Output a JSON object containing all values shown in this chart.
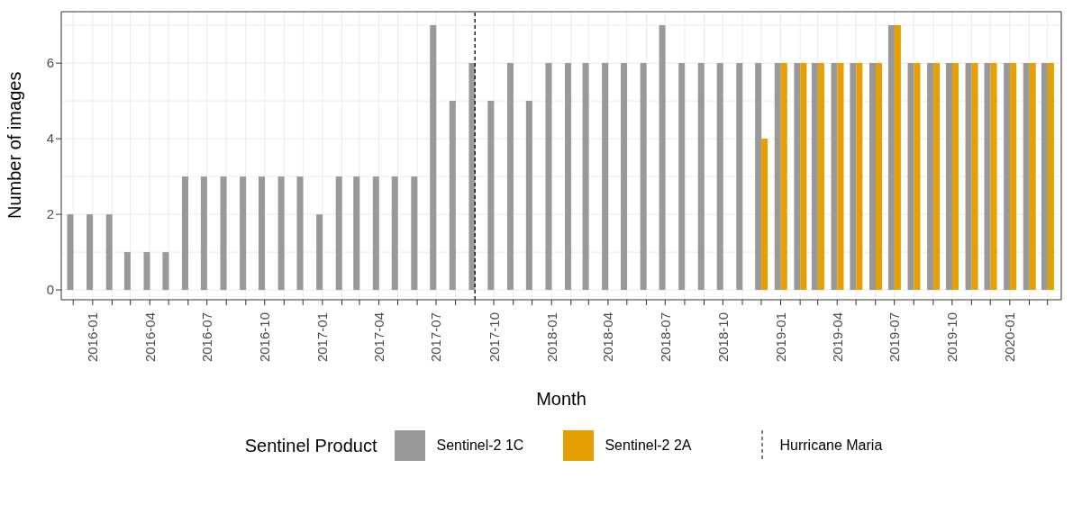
{
  "chart_data": {
    "type": "bar",
    "xlabel": "Month",
    "ylabel": "Number of images",
    "legend_title": "Sentinel Product",
    "x": [
      "2015-12",
      "2016-01",
      "2016-02",
      "2016-03",
      "2016-04",
      "2016-05",
      "2016-06",
      "2016-07",
      "2016-08",
      "2016-09",
      "2016-10",
      "2016-11",
      "2016-12",
      "2017-01",
      "2017-02",
      "2017-03",
      "2017-04",
      "2017-05",
      "2017-06",
      "2017-07",
      "2017-08",
      "2017-09",
      "2017-10",
      "2017-11",
      "2017-12",
      "2018-01",
      "2018-02",
      "2018-03",
      "2018-04",
      "2018-05",
      "2018-06",
      "2018-07",
      "2018-08",
      "2018-09",
      "2018-10",
      "2018-11",
      "2018-12",
      "2019-01",
      "2019-02",
      "2019-03",
      "2019-04",
      "2019-05",
      "2019-06",
      "2019-07",
      "2019-08",
      "2019-09",
      "2019-10",
      "2019-11",
      "2019-12",
      "2020-01",
      "2020-02",
      "2020-03"
    ],
    "series": [
      {
        "name": "Sentinel-2 1C",
        "color": "#999999",
        "values": [
          2,
          2,
          2,
          1,
          1,
          1,
          3,
          3,
          3,
          3,
          3,
          3,
          3,
          2,
          3,
          3,
          3,
          3,
          3,
          7,
          5,
          6,
          5,
          6,
          5,
          6,
          6,
          6,
          6,
          6,
          6,
          7,
          6,
          6,
          6,
          6,
          6,
          6,
          6,
          6,
          6,
          6,
          6,
          7,
          6,
          6,
          6,
          6,
          6,
          6,
          6,
          6
        ]
      },
      {
        "name": "Sentinel-2 2A",
        "color": "#e69f00",
        "values": [
          null,
          null,
          null,
          null,
          null,
          null,
          null,
          null,
          null,
          null,
          null,
          null,
          null,
          null,
          null,
          null,
          null,
          null,
          null,
          null,
          null,
          null,
          null,
          null,
          null,
          null,
          null,
          null,
          null,
          null,
          null,
          null,
          null,
          null,
          null,
          null,
          4,
          6,
          6,
          6,
          6,
          6,
          6,
          7,
          6,
          6,
          6,
          6,
          6,
          6,
          6,
          6
        ]
      }
    ],
    "xlim": [
      "2015-11-12",
      "2020-03-23"
    ],
    "xticks": [
      {
        "value": "2015-12",
        "label": null
      },
      {
        "value": "2016-01",
        "label": "2016-01"
      },
      {
        "value": "2016-02",
        "label": null
      },
      {
        "value": "2016-03",
        "label": null
      },
      {
        "value": "2016-04",
        "label": "2016-04"
      },
      {
        "value": "2016-05",
        "label": null
      },
      {
        "value": "2016-06",
        "label": null
      },
      {
        "value": "2016-07",
        "label": "2016-07"
      },
      {
        "value": "2016-08",
        "label": null
      },
      {
        "value": "2016-09",
        "label": null
      },
      {
        "value": "2016-10",
        "label": "2016-10"
      },
      {
        "value": "2016-11",
        "label": null
      },
      {
        "value": "2016-12",
        "label": null
      },
      {
        "value": "2017-01",
        "label": "2017-01"
      },
      {
        "value": "2017-02",
        "label": null
      },
      {
        "value": "2017-03",
        "label": null
      },
      {
        "value": "2017-04",
        "label": "2017-04"
      },
      {
        "value": "2017-05",
        "label": null
      },
      {
        "value": "2017-06",
        "label": null
      },
      {
        "value": "2017-07",
        "label": "2017-07"
      },
      {
        "value": "2017-08",
        "label": null
      },
      {
        "value": "2017-09",
        "label": null
      },
      {
        "value": "2017-10",
        "label": "2017-10"
      },
      {
        "value": "2017-11",
        "label": null
      },
      {
        "value": "2017-12",
        "label": null
      },
      {
        "value": "2018-01",
        "label": "2018-01"
      },
      {
        "value": "2018-02",
        "label": null
      },
      {
        "value": "2018-03",
        "label": null
      },
      {
        "value": "2018-04",
        "label": "2018-04"
      },
      {
        "value": "2018-05",
        "label": null
      },
      {
        "value": "2018-06",
        "label": null
      },
      {
        "value": "2018-07",
        "label": "2018-07"
      },
      {
        "value": "2018-08",
        "label": null
      },
      {
        "value": "2018-09",
        "label": null
      },
      {
        "value": "2018-10",
        "label": "2018-10"
      },
      {
        "value": "2018-11",
        "label": null
      },
      {
        "value": "2018-12",
        "label": null
      },
      {
        "value": "2019-01",
        "label": "2019-01"
      },
      {
        "value": "2019-02",
        "label": null
      },
      {
        "value": "2019-03",
        "label": null
      },
      {
        "value": "2019-04",
        "label": "2019-04"
      },
      {
        "value": "2019-05",
        "label": null
      },
      {
        "value": "2019-06",
        "label": null
      },
      {
        "value": "2019-07",
        "label": "2019-07"
      },
      {
        "value": "2019-08",
        "label": null
      },
      {
        "value": "2019-09",
        "label": null
      },
      {
        "value": "2019-10",
        "label": "2019-10"
      },
      {
        "value": "2019-11",
        "label": null
      },
      {
        "value": "2019-12",
        "label": null
      },
      {
        "value": "2020-01",
        "label": "2020-01"
      },
      {
        "value": "2020-02",
        "label": null
      },
      {
        "value": "2020-03",
        "label": null
      }
    ],
    "ylim": [
      -0.26,
      7.36
    ],
    "yticks": [
      0,
      2,
      4,
      6
    ],
    "grid": true,
    "legend": "bottom",
    "ref_lines": [
      {
        "axis": "x",
        "value": "2017-09",
        "label": "Hurricane Maria",
        "line_style": "dashed",
        "color": "#000000"
      }
    ]
  }
}
